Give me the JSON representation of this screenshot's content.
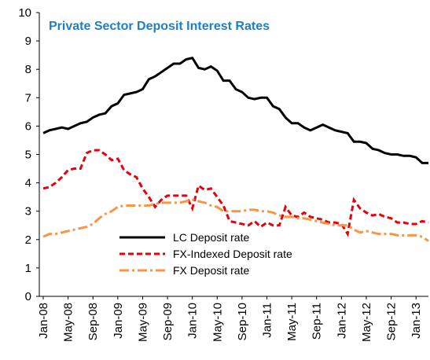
{
  "chart_data": {
    "type": "line",
    "title": "Private Sector Deposit Interest Rates",
    "categories": [
      "Jan-08",
      null,
      null,
      null,
      "May-08",
      null,
      null,
      null,
      "Sep-08",
      null,
      null,
      null,
      "Jan-09",
      null,
      null,
      null,
      "May-09",
      null,
      null,
      null,
      "Sep-09",
      null,
      null,
      null,
      "Jan-10",
      null,
      null,
      null,
      "May-10",
      null,
      null,
      null,
      "Sep-10",
      null,
      null,
      null,
      "Jan-11",
      null,
      null,
      null,
      "May-11",
      null,
      null,
      null,
      "Sep-11",
      null,
      null,
      null,
      "Jan-12",
      null,
      null,
      null,
      "May-12",
      null,
      null,
      null,
      "Sep-12",
      null,
      null,
      null,
      "Jan-13",
      null,
      null
    ],
    "series": [
      {
        "name": "LC Deposit rate",
        "color": "#000000",
        "style": "solid",
        "values": [
          5.75,
          5.85,
          5.9,
          5.95,
          5.9,
          6.0,
          6.1,
          6.15,
          6.3,
          6.4,
          6.45,
          6.7,
          6.8,
          7.1,
          7.15,
          7.2,
          7.3,
          7.65,
          7.75,
          7.9,
          8.05,
          8.2,
          8.2,
          8.35,
          8.4,
          8.05,
          8.0,
          8.1,
          7.95,
          7.6,
          7.6,
          7.3,
          7.2,
          7.0,
          6.95,
          7.0,
          7.0,
          6.7,
          6.6,
          6.3,
          6.1,
          6.1,
          5.95,
          5.85,
          5.95,
          6.05,
          5.95,
          5.85,
          5.8,
          5.75,
          5.45,
          5.45,
          5.4,
          5.2,
          5.15,
          5.05,
          5.0,
          5.0,
          4.95,
          4.95,
          4.9,
          4.7,
          4.7
        ]
      },
      {
        "name": "FX-Indexed  Deposit rate",
        "color": "#e8000b",
        "style": "dashed",
        "values": [
          3.8,
          3.85,
          4.0,
          4.2,
          4.45,
          4.5,
          4.5,
          5.05,
          5.15,
          5.15,
          5.0,
          4.8,
          4.85,
          4.45,
          4.3,
          4.2,
          3.8,
          3.5,
          3.15,
          3.4,
          3.55,
          3.55,
          3.55,
          3.55,
          3.1,
          3.9,
          3.75,
          3.8,
          3.5,
          3.2,
          2.65,
          2.6,
          2.55,
          2.5,
          2.65,
          2.45,
          2.6,
          2.5,
          2.5,
          3.15,
          2.85,
          2.8,
          2.95,
          2.8,
          2.75,
          2.7,
          2.6,
          2.6,
          2.55,
          2.2,
          3.4,
          3.1,
          2.95,
          2.85,
          2.9,
          2.8,
          2.75,
          2.6,
          2.6,
          2.55,
          2.55,
          2.65,
          2.6
        ]
      },
      {
        "name": "FX Deposit rate",
        "color": "#f79646",
        "style": "dashdot",
        "values": [
          2.1,
          2.2,
          2.2,
          2.25,
          2.3,
          2.35,
          2.4,
          2.45,
          2.55,
          2.75,
          2.9,
          3.0,
          3.15,
          3.2,
          3.2,
          3.2,
          3.2,
          3.2,
          3.25,
          3.3,
          3.3,
          3.3,
          3.3,
          3.35,
          3.4,
          3.35,
          3.3,
          3.2,
          3.15,
          3.0,
          3.0,
          3.0,
          3.0,
          3.05,
          3.05,
          3.0,
          3.0,
          2.95,
          2.85,
          2.8,
          2.8,
          2.75,
          2.75,
          2.7,
          2.65,
          2.6,
          2.55,
          2.5,
          2.5,
          2.5,
          2.35,
          2.25,
          2.3,
          2.25,
          2.2,
          2.2,
          2.2,
          2.15,
          2.15,
          2.15,
          2.15,
          2.1,
          1.95
        ]
      }
    ],
    "ylim": [
      0,
      10
    ],
    "yticks": [
      0,
      1,
      2,
      3,
      4,
      5,
      6,
      7,
      8,
      9,
      10
    ],
    "grid": false
  }
}
